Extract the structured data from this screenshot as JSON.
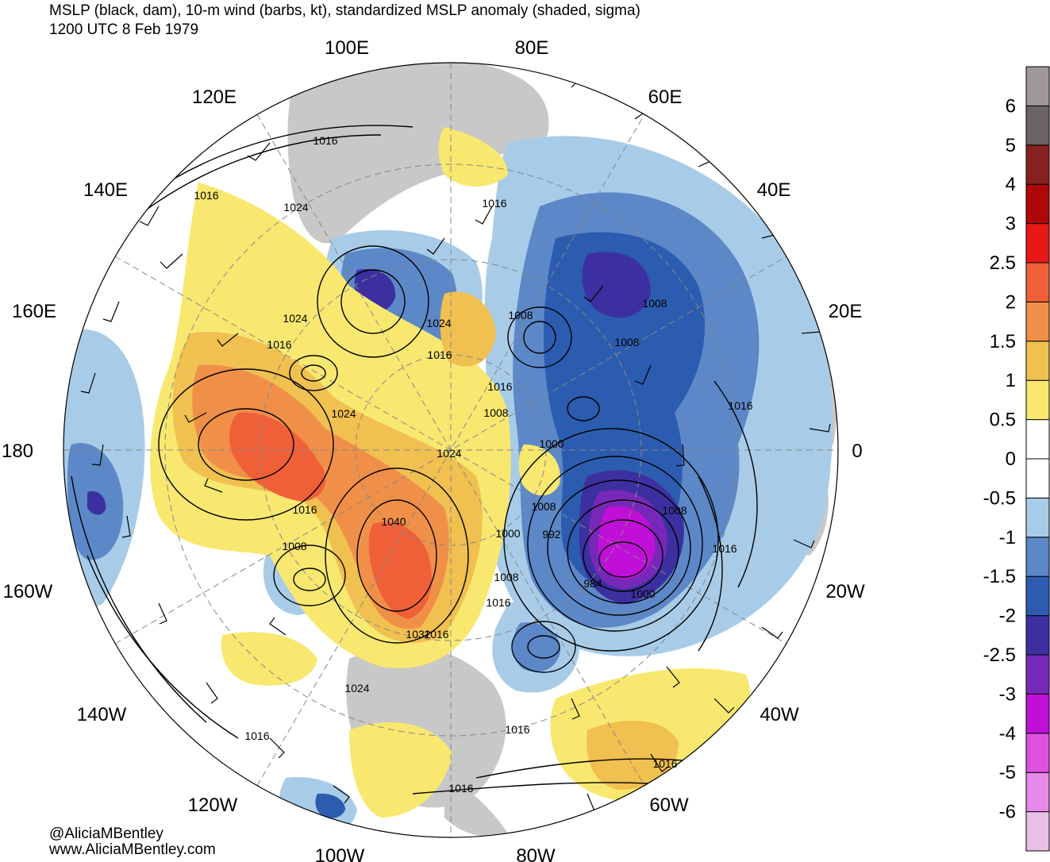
{
  "title": {
    "line1": "MSLP (black, dam), 10-m wind (barbs, kt), standardized MSLP anomaly (shaded, sigma)",
    "line2": "1200 UTC 8 Feb 1979"
  },
  "credits": {
    "twitter": "@AliciaMBentley",
    "website": "www.AliciaMBentley.com"
  },
  "longitude_labels": [
    {
      "text": "100E"
    },
    {
      "text": "80E"
    },
    {
      "text": "120E"
    },
    {
      "text": "60E"
    },
    {
      "text": "140E"
    },
    {
      "text": "40E"
    },
    {
      "text": "160E"
    },
    {
      "text": "20E"
    },
    {
      "text": "180"
    },
    {
      "text": "0"
    },
    {
      "text": "160W"
    },
    {
      "text": "20W"
    },
    {
      "text": "140W"
    },
    {
      "text": "40W"
    },
    {
      "text": "120W"
    },
    {
      "text": "60W"
    },
    {
      "text": "100W"
    },
    {
      "text": "80W"
    }
  ],
  "isobar_labels": [
    {
      "text": "1016"
    },
    {
      "text": "1016"
    },
    {
      "text": "1024"
    },
    {
      "text": "1016"
    },
    {
      "text": "1024"
    },
    {
      "text": "1016"
    },
    {
      "text": "1024"
    },
    {
      "text": "1016"
    },
    {
      "text": "1008"
    },
    {
      "text": "1008"
    },
    {
      "text": "1008"
    },
    {
      "text": "1016"
    },
    {
      "text": "1016"
    },
    {
      "text": "1008"
    },
    {
      "text": "1000"
    },
    {
      "text": "1024"
    },
    {
      "text": "1024"
    },
    {
      "text": "1016"
    },
    {
      "text": "1008"
    },
    {
      "text": "1040"
    },
    {
      "text": "1008"
    },
    {
      "text": "1000"
    },
    {
      "text": "992"
    },
    {
      "text": "1008"
    },
    {
      "text": "1016"
    },
    {
      "text": "984"
    },
    {
      "text": "1000"
    },
    {
      "text": "1016"
    },
    {
      "text": "1008"
    },
    {
      "text": "1016"
    },
    {
      "text": "1032"
    },
    {
      "text": "1024"
    },
    {
      "text": "1016"
    },
    {
      "text": "1016"
    },
    {
      "text": "1016"
    },
    {
      "text": "1016"
    }
  ],
  "colorbar": {
    "colors": [
      "#e8c0e8",
      "#e888e8",
      "#e050e0",
      "#c010d8",
      "#7828b8",
      "#3c30a0",
      "#2c5cb0",
      "#5c88c8",
      "#a8cce8",
      "#ffffff",
      "#ffffff",
      "#f8e870",
      "#f0c050",
      "#f09048",
      "#f06038",
      "#e81818",
      "#b00808",
      "#882020",
      "#6c6464",
      "#a09898"
    ],
    "labels": [
      "-6",
      "-5",
      "-4",
      "-3",
      "-2.5",
      "-2",
      "-1.5",
      "-1",
      "-0.5",
      "0",
      "0.5",
      "1",
      "1.5",
      "2",
      "2.5",
      "3",
      "4",
      "5",
      "6"
    ]
  },
  "anomaly_palette": {
    "neg_05": "#a8cce8",
    "neg_10": "#5c88c8",
    "neg_15": "#2c5cb0",
    "neg_20": "#3c30a0",
    "neg_25": "#7828b8",
    "neg_30": "#c010d8",
    "pos_05": "#f8e870",
    "pos_10": "#f0c050",
    "pos_15": "#f09048",
    "pos_20": "#f06038",
    "land": "#c8c8c8"
  }
}
